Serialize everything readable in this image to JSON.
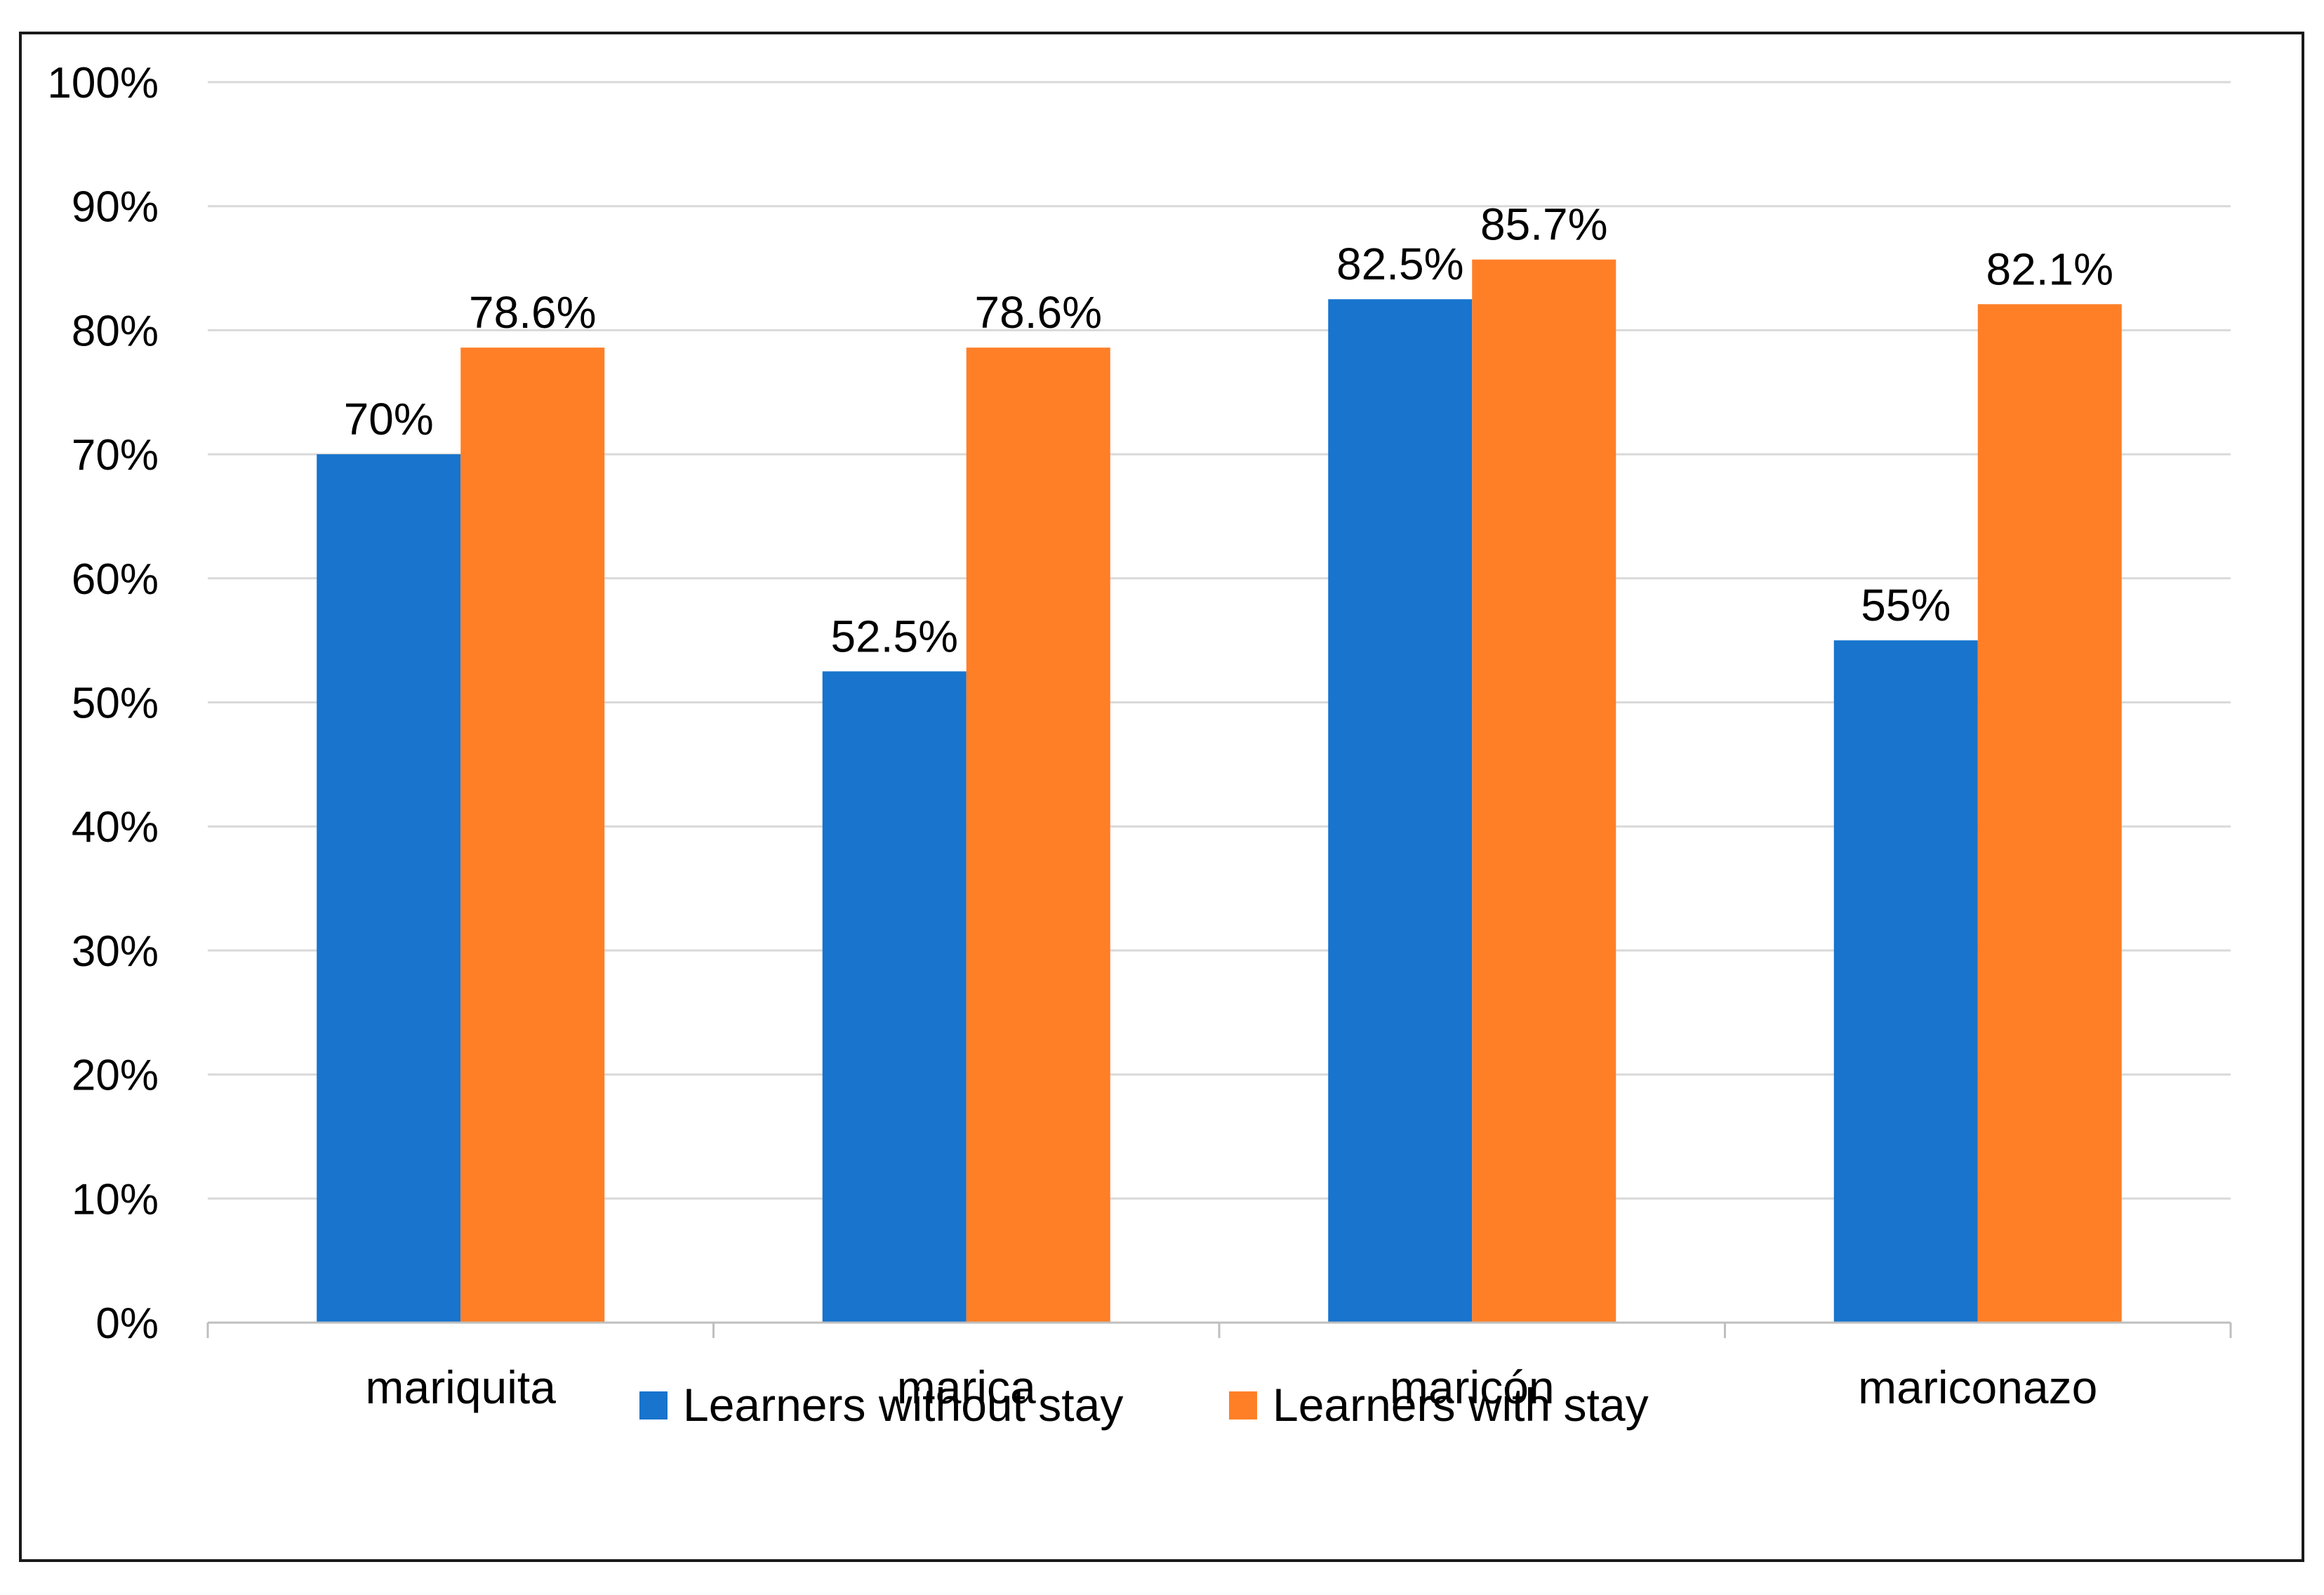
{
  "chart_data": {
    "type": "bar",
    "title": "",
    "xlabel": "",
    "ylabel": "",
    "ylim": [
      0,
      100
    ],
    "y_ticks": [
      0,
      10,
      20,
      30,
      40,
      50,
      60,
      70,
      80,
      90,
      100
    ],
    "y_tick_labels": [
      "0%",
      "10%",
      "20%",
      "30%",
      "40%",
      "50%",
      "60%",
      "70%",
      "80%",
      "90%",
      "100%"
    ],
    "grid": true,
    "legend_position": "bottom",
    "categories": [
      "mariquita",
      "marica",
      "maricón",
      "mariconazo"
    ],
    "series": [
      {
        "name": "Learners without stay",
        "color": "#1874CD",
        "values": [
          70,
          52.5,
          82.5,
          55
        ],
        "labels": [
          "70%",
          "52.5%",
          "82.5%",
          "55%"
        ]
      },
      {
        "name": "Learners with stay",
        "color": "#FF7F27",
        "values": [
          78.6,
          78.6,
          85.7,
          82.1
        ],
        "labels": [
          "78.6%",
          "78.6%",
          "85.7%",
          "82.1%"
        ]
      }
    ]
  }
}
